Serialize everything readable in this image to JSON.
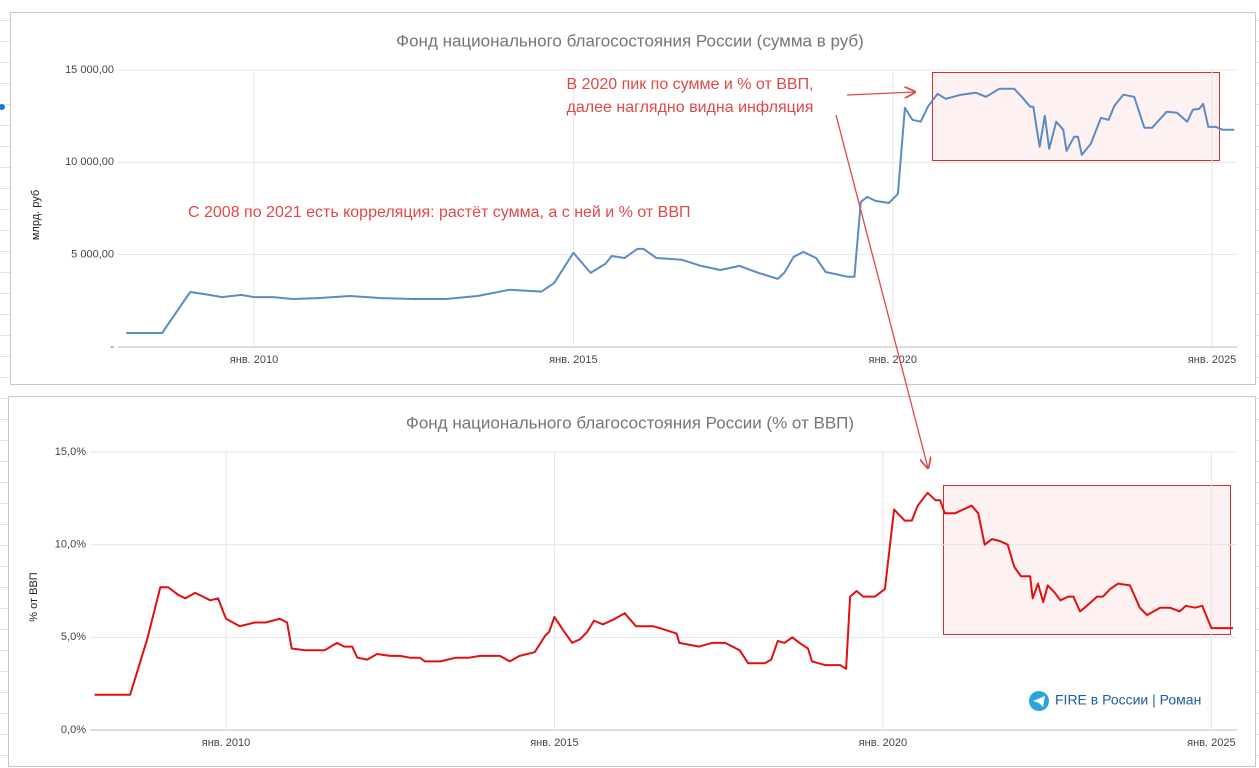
{
  "chart_data": [
    {
      "type": "line",
      "title": "Фонд национального благосостояния России (сумма в руб)",
      "y_label": "млрд. руб",
      "color": "#5b8bc6",
      "grid": true,
      "xlim": [
        2007.87,
        2025.39
      ],
      "ylim": [
        0,
        15000
      ],
      "xticks": [
        {
          "value": 2010,
          "label": "янв. 2010"
        },
        {
          "value": 2015,
          "label": "янв. 2015"
        },
        {
          "value": 2020,
          "label": "янв. 2020"
        },
        {
          "value": 2025,
          "label": "янв. 2025"
        }
      ],
      "yticks": [
        {
          "value": 0,
          "label": "-"
        },
        {
          "value": 5000,
          "label": "5 000,00"
        },
        {
          "value": 10000,
          "label": "10 000,00"
        },
        {
          "value": 15000,
          "label": "15 000,00"
        }
      ],
      "annotations": [
        "В 2020 пик по сумме и % от ВВП,",
        "далее наглядно видна инфляция",
        "С 2008 по 2021 есть корреляция: растёт сумма, а с ней и % от ВВП"
      ],
      "x": [
        2008.0,
        2008.56,
        2009.0,
        2009.3,
        2009.5,
        2009.8,
        2010.0,
        2010.3,
        2010.6,
        2011.0,
        2011.5,
        2012.0,
        2012.5,
        2013.0,
        2013.5,
        2014.0,
        2014.5,
        2014.7,
        2015.0,
        2015.27,
        2015.5,
        2015.6,
        2015.8,
        2016.0,
        2016.1,
        2016.3,
        2016.7,
        2017.0,
        2017.3,
        2017.6,
        2017.9,
        2018.2,
        2018.3,
        2018.45,
        2018.6,
        2018.8,
        2018.95,
        2019.3,
        2019.4,
        2019.5,
        2019.6,
        2019.73,
        2019.94,
        2020.08,
        2020.19,
        2020.31,
        2020.44,
        2020.55,
        2020.7,
        2020.83,
        2021.07,
        2021.3,
        2021.46,
        2021.67,
        2021.9,
        2022.02,
        2022.15,
        2022.2,
        2022.3,
        2022.38,
        2022.45,
        2022.56,
        2022.67,
        2022.72,
        2022.84,
        2022.9,
        2022.96,
        2023.1,
        2023.26,
        2023.38,
        2023.47,
        2023.61,
        2023.78,
        2023.94,
        2024.06,
        2024.29,
        2024.45,
        2024.61,
        2024.7,
        2024.8,
        2024.86,
        2024.94,
        2025.06,
        2025.17,
        2025.35
      ],
      "values": [
        760,
        760,
        2980,
        2820,
        2700,
        2820,
        2700,
        2700,
        2600,
        2650,
        2760,
        2650,
        2600,
        2600,
        2760,
        3100,
        3000,
        3470,
        5100,
        4010,
        4500,
        4930,
        4820,
        5310,
        5310,
        4820,
        4720,
        4390,
        4170,
        4390,
        4010,
        3690,
        4010,
        4880,
        5150,
        4820,
        4060,
        3800,
        3800,
        7860,
        8130,
        7910,
        7800,
        8290,
        12950,
        12300,
        12200,
        13010,
        13710,
        13440,
        13660,
        13770,
        13550,
        13990,
        13990,
        13550,
        13010,
        13010,
        10840,
        12520,
        10730,
        12200,
        11760,
        10620,
        11380,
        11380,
        10400,
        11000,
        12410,
        12300,
        13060,
        13660,
        13550,
        11870,
        11870,
        12740,
        12680,
        12200,
        12850,
        12900,
        13170,
        11920,
        11920,
        11760,
        11760
      ]
    },
    {
      "type": "line",
      "title": "Фонд национального благосостояния России (% от ВВП)",
      "y_label": "% от ВВП",
      "color": "#e01010",
      "grid": true,
      "xlim": [
        2007.93,
        2025.39
      ],
      "ylim": [
        0,
        15
      ],
      "xticks": [
        {
          "value": 2010,
          "label": "янв. 2010"
        },
        {
          "value": 2015,
          "label": "янв. 2015"
        },
        {
          "value": 2020,
          "label": "янв. 2020"
        },
        {
          "value": 2025,
          "label": "янв. 2025"
        }
      ],
      "yticks": [
        {
          "value": 0,
          "label": "0,0%"
        },
        {
          "value": 5,
          "label": "5,0%"
        },
        {
          "value": 10,
          "label": "10,0%"
        },
        {
          "value": 15,
          "label": "15,0%"
        }
      ],
      "watermark": "FIRE в России | Роман",
      "x": [
        2008.0,
        2008.54,
        2008.8,
        2009.0,
        2009.12,
        2009.27,
        2009.38,
        2009.53,
        2009.65,
        2009.76,
        2009.88,
        2010.0,
        2010.21,
        2010.44,
        2010.6,
        2010.82,
        2010.93,
        2011.0,
        2011.2,
        2011.5,
        2011.69,
        2011.8,
        2011.92,
        2012.0,
        2012.15,
        2012.3,
        2012.5,
        2012.65,
        2012.8,
        2012.95,
        2013.03,
        2013.26,
        2013.5,
        2013.7,
        2013.87,
        2014.17,
        2014.32,
        2014.47,
        2014.7,
        2014.86,
        2014.92,
        2015.0,
        2015.13,
        2015.27,
        2015.39,
        2015.5,
        2015.6,
        2015.74,
        2015.92,
        2016.07,
        2016.24,
        2016.38,
        2016.5,
        2016.6,
        2016.86,
        2016.9,
        2017.2,
        2017.4,
        2017.6,
        2017.82,
        2017.95,
        2018.2,
        2018.3,
        2018.4,
        2018.5,
        2018.62,
        2018.73,
        2018.86,
        2018.92,
        2019.12,
        2019.35,
        2019.44,
        2019.5,
        2019.6,
        2019.7,
        2019.88,
        2020.03,
        2020.17,
        2020.33,
        2020.44,
        2020.53,
        2020.68,
        2020.8,
        2020.87,
        2020.94,
        2021.1,
        2021.22,
        2021.35,
        2021.45,
        2021.55,
        2021.66,
        2021.78,
        2021.9,
        2022.0,
        2022.1,
        2022.24,
        2022.28,
        2022.36,
        2022.44,
        2022.51,
        2022.62,
        2022.7,
        2022.82,
        2022.9,
        2023.0,
        2023.07,
        2023.26,
        2023.35,
        2023.46,
        2023.58,
        2023.76,
        2023.91,
        2024.02,
        2024.22,
        2024.37,
        2024.52,
        2024.61,
        2024.75,
        2024.86,
        2025.0,
        2025.13,
        2025.33
      ],
      "values": [
        1.9,
        1.9,
        4.9,
        7.7,
        7.7,
        7.3,
        7.1,
        7.4,
        7.2,
        7.0,
        7.1,
        6.0,
        5.6,
        5.8,
        5.8,
        6.0,
        5.8,
        4.4,
        4.3,
        4.3,
        4.7,
        4.5,
        4.5,
        3.9,
        3.8,
        4.1,
        4.0,
        4.0,
        3.9,
        3.9,
        3.7,
        3.7,
        3.9,
        3.9,
        4.0,
        4.0,
        3.7,
        4.0,
        4.2,
        5.1,
        5.3,
        6.1,
        5.4,
        4.7,
        4.9,
        5.3,
        5.9,
        5.7,
        6.0,
        6.3,
        5.6,
        5.6,
        5.6,
        5.5,
        5.2,
        4.7,
        4.5,
        4.7,
        4.7,
        4.3,
        3.6,
        3.6,
        3.8,
        4.8,
        4.7,
        5.0,
        4.7,
        4.4,
        3.7,
        3.5,
        3.5,
        3.3,
        7.2,
        7.5,
        7.2,
        7.2,
        7.6,
        11.9,
        11.3,
        11.3,
        12.1,
        12.8,
        12.4,
        12.4,
        11.7,
        11.7,
        11.9,
        12.1,
        11.7,
        10.0,
        10.3,
        10.2,
        10.0,
        8.8,
        8.3,
        8.3,
        7.1,
        7.9,
        6.9,
        7.8,
        7.4,
        7.0,
        7.2,
        7.2,
        6.4,
        6.6,
        7.2,
        7.2,
        7.6,
        7.9,
        7.8,
        6.6,
        6.2,
        6.6,
        6.6,
        6.4,
        6.7,
        6.6,
        6.7,
        5.5,
        5.5,
        5.5
      ]
    }
  ]
}
